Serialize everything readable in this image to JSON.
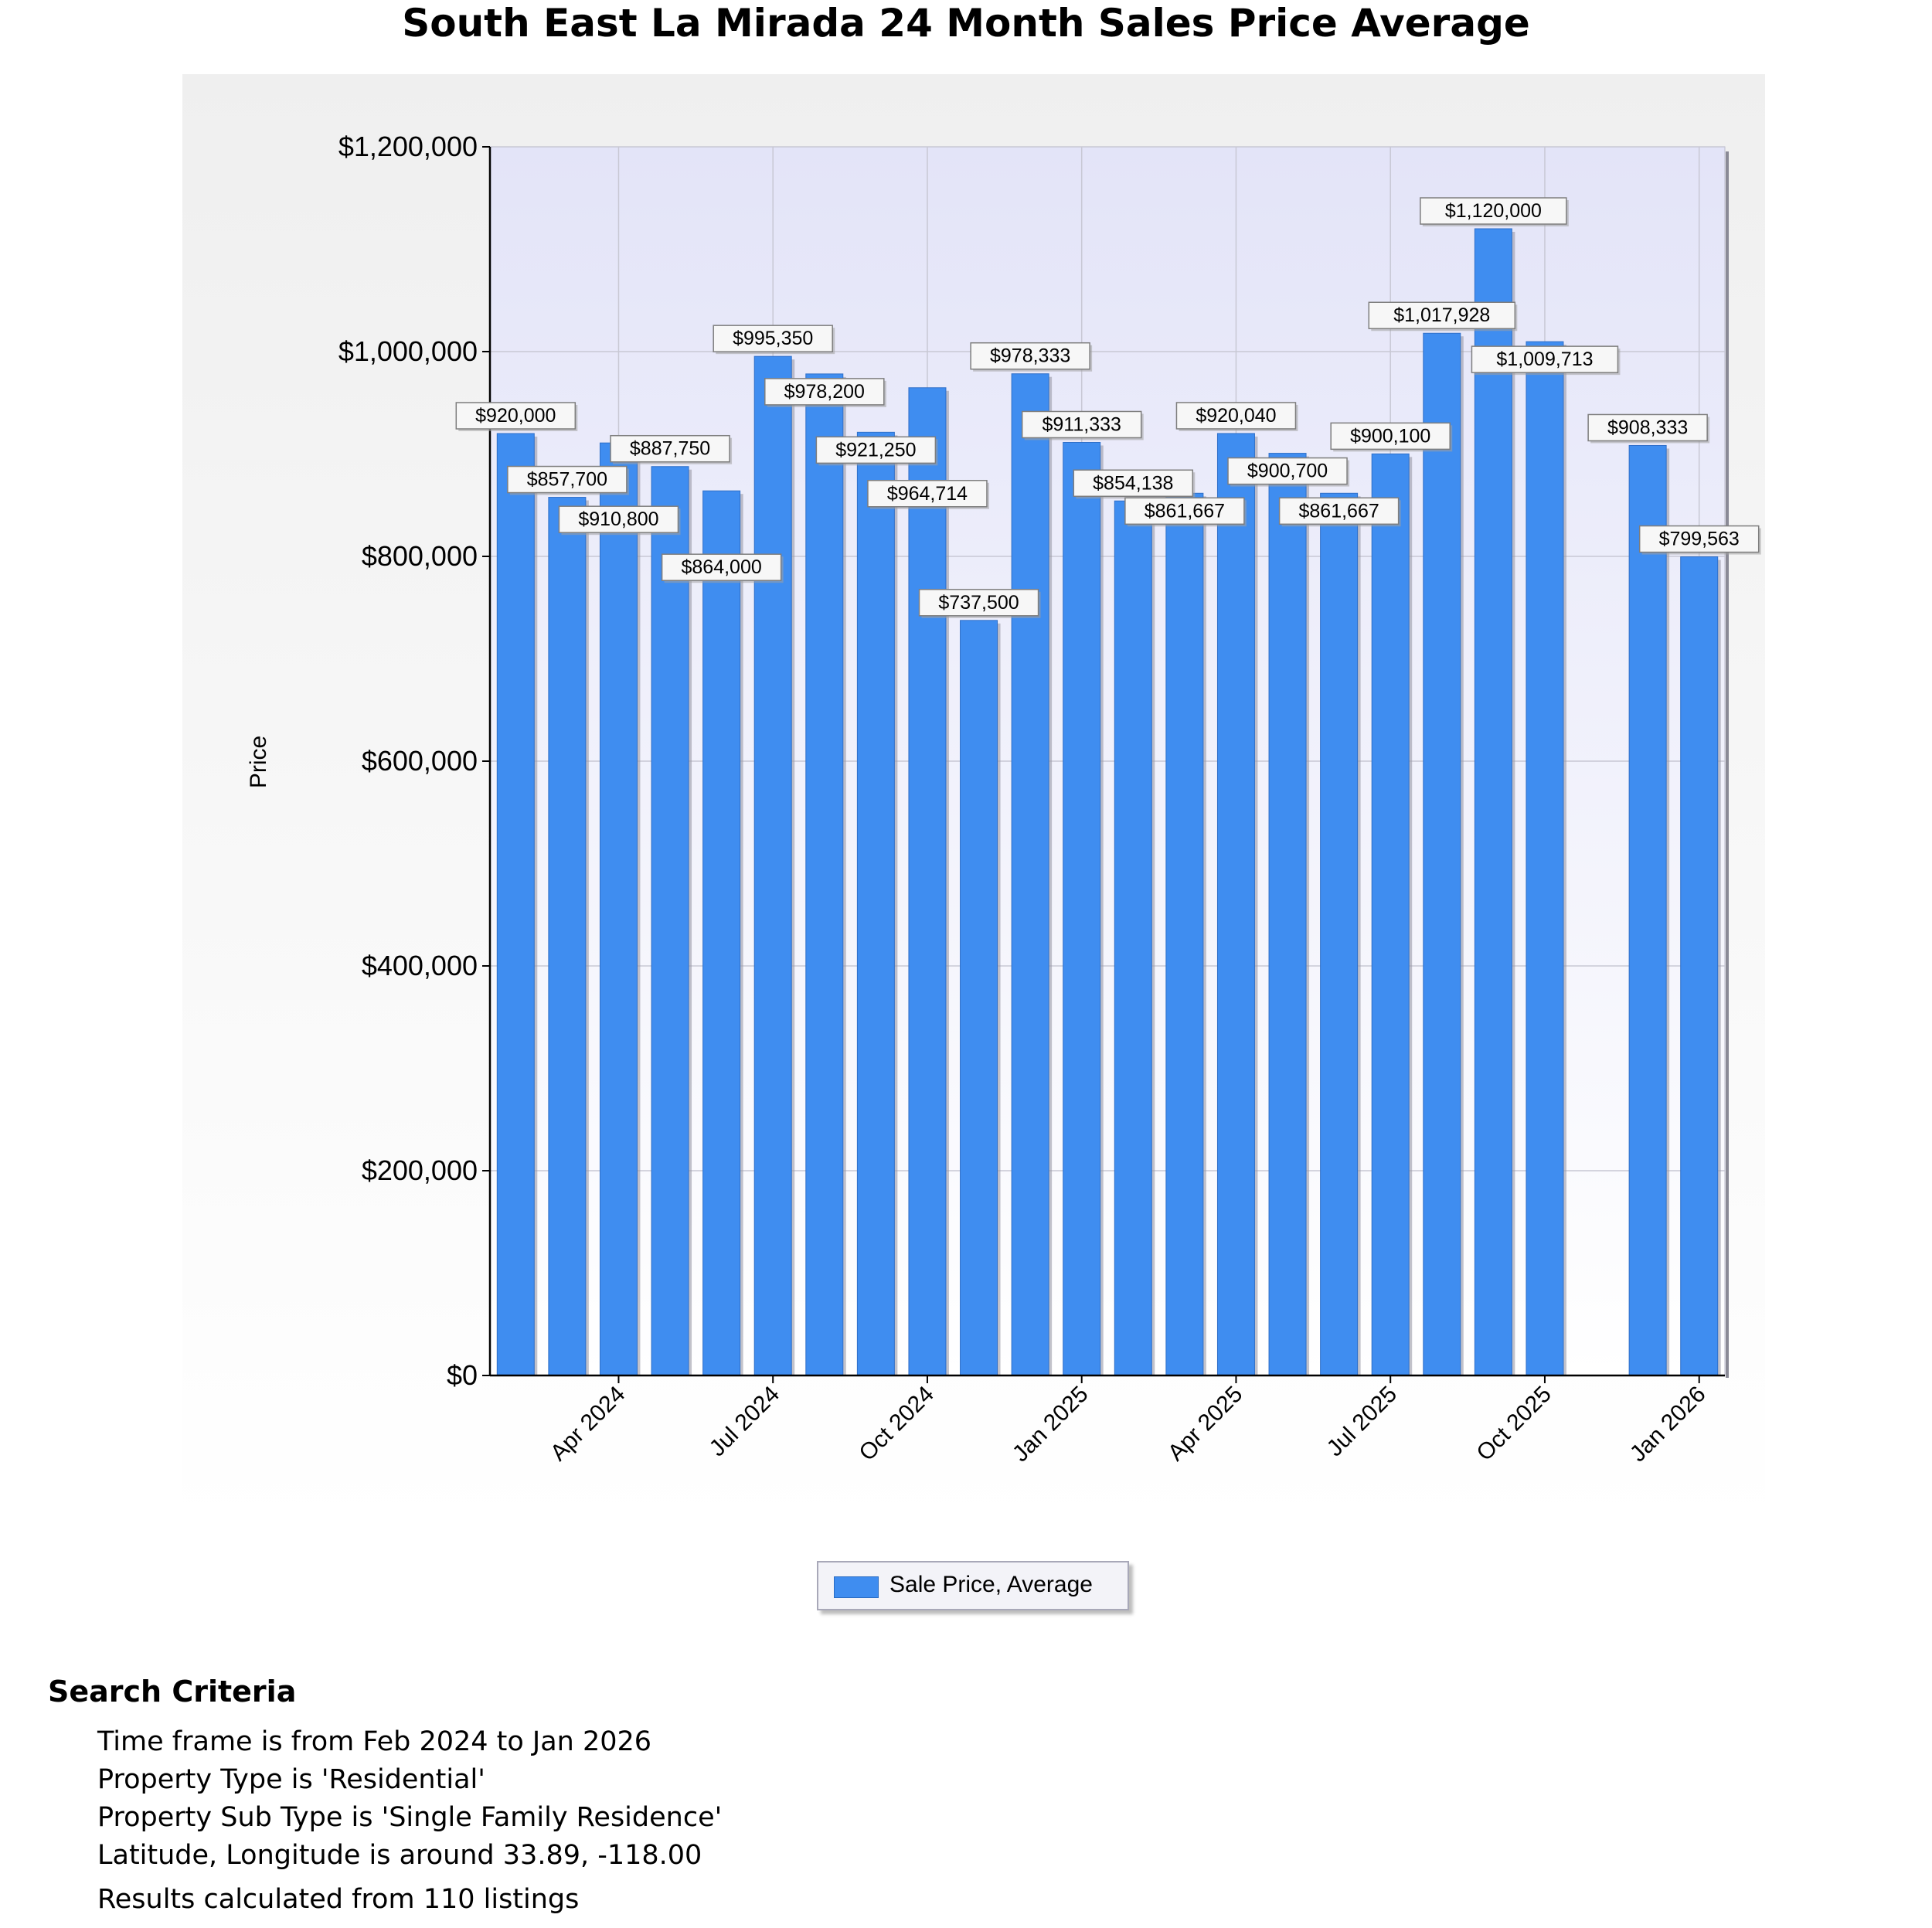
{
  "title": "South East La Mirada 24 Month Sales Price Average",
  "chart_data": {
    "type": "bar",
    "title": "South East La Mirada 24 Month Sales Price Average",
    "xlabel": "",
    "ylabel": "Price",
    "ylim": [
      0,
      1200000
    ],
    "y_ticks": [
      0,
      200000,
      400000,
      600000,
      800000,
      1000000,
      1200000
    ],
    "y_tick_labels": [
      "$0",
      "$200,000",
      "$400,000",
      "$600,000",
      "$800,000",
      "$1,000,000",
      "$1,200,000"
    ],
    "grid": true,
    "legend_position": "bottom-center",
    "categories": [
      "Feb 2024",
      "Mar 2024",
      "Apr 2024",
      "May 2024",
      "Jun 2024",
      "Jul 2024",
      "Aug 2024",
      "Sep 2024",
      "Oct 2024",
      "Nov 2024",
      "Dec 2024",
      "Jan 2025",
      "Feb 2025",
      "Mar 2025",
      "Apr 2025",
      "May 2025",
      "Jun 2025",
      "Jul 2025",
      "Aug 2025",
      "Sep 2025",
      "Oct 2025",
      "Nov 2025",
      "Dec 2025",
      "Jan 2026"
    ],
    "x_ticks": [
      "Apr 2024",
      "Jul 2024",
      "Oct 2024",
      "Jan 2025",
      "Apr 2025",
      "Jul 2025",
      "Oct 2025",
      "Jan 2026"
    ],
    "series": [
      {
        "name": "Sale Price, Average",
        "color": "#3f8df0",
        "values": [
          920000,
          857700,
          910800,
          887750,
          864000,
          995350,
          978200,
          921250,
          964714,
          737500,
          978333,
          911333,
          854138,
          861667,
          920040,
          900700,
          861667,
          900100,
          1017928,
          1120000,
          1009713,
          null,
          908333,
          799563
        ],
        "labels": [
          "$920,000",
          "$857,700",
          "$910,800",
          "$887,750",
          "$864,000",
          "$995,350",
          "$978,200",
          "$921,250",
          "$964,714",
          "$737,500",
          "$978,333",
          "$911,333",
          "$854,138",
          "$861,667",
          "$920,040",
          "$900,700",
          "$861,667",
          "$900,100",
          "$1,017,928",
          "$1,120,000",
          "$1,009,713",
          null,
          "$908,333",
          "$799,563"
        ]
      }
    ]
  },
  "legend": {
    "label": "Sale Price, Average",
    "color": "#3f8df0"
  },
  "search_criteria": {
    "heading": "Search Criteria",
    "lines": [
      "Time frame is from Feb 2024 to Jan 2026",
      "Property Type is 'Residential'",
      "Property Sub Type is 'Single Family Residence'",
      "Latitude, Longitude is around 33.89, -118.00"
    ],
    "results": "Results calculated from 110 listings"
  }
}
